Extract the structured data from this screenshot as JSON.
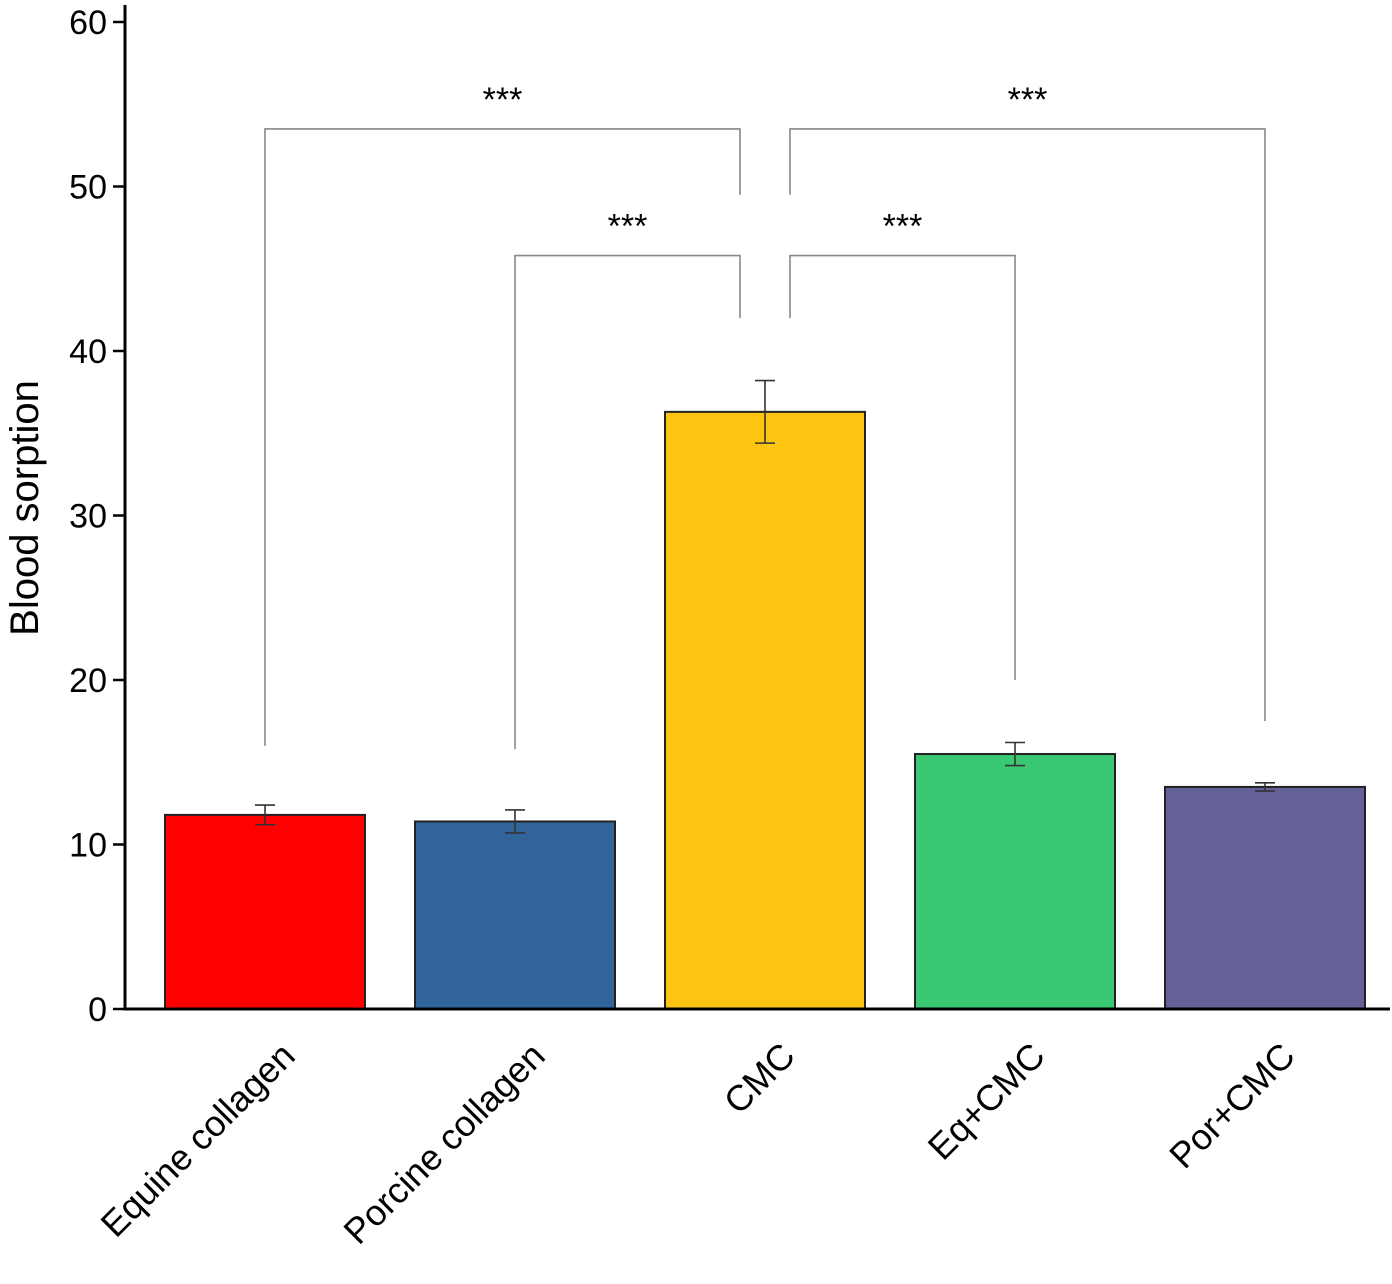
{
  "chart_data": {
    "type": "bar",
    "title": "",
    "xlabel": "",
    "ylabel": "Blood sorption",
    "ylim": [
      0,
      60
    ],
    "yticks": [
      0,
      10,
      20,
      30,
      40,
      50,
      60
    ],
    "grid": false,
    "legend": "none",
    "categories": [
      "Equine collagen",
      "Porcine collagen",
      "CMC",
      "Eq+CMC",
      "Por+CMC"
    ],
    "values": [
      11.8,
      11.4,
      36.3,
      15.5,
      13.5
    ],
    "errors": [
      0.6,
      0.7,
      1.9,
      0.7,
      0.25
    ],
    "colors": [
      "#ff0000",
      "#31649b",
      "#fcc512",
      "#3bc873",
      "#636198"
    ],
    "significance": [
      {
        "from": 0,
        "to": 2,
        "label": "***",
        "bracket_y": 53.5,
        "left_drop": 16.0,
        "right_drop": 49.5
      },
      {
        "from": 1,
        "to": 2,
        "label": "***",
        "bracket_y": 45.8,
        "left_drop": 15.8,
        "right_drop": 42.0
      },
      {
        "from": 2,
        "to": 3,
        "label": "***",
        "bracket_y": 45.8,
        "left_drop": 42.0,
        "right_drop": 20.0
      },
      {
        "from": 2,
        "to": 4,
        "label": "***",
        "bracket_y": 53.5,
        "left_drop": 49.5,
        "right_drop": 17.5
      }
    ]
  }
}
